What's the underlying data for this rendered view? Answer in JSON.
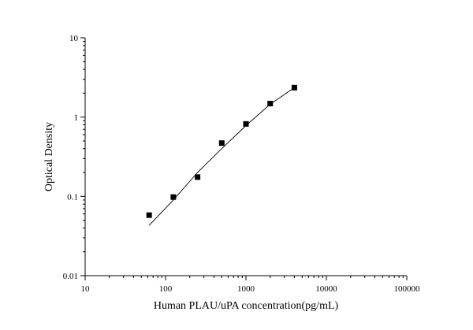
{
  "chart_data": {
    "type": "scatter",
    "title": "",
    "xlabel": "Human PLAU/uPA concentration(pg/mL)",
    "ylabel": "Optical Density",
    "x_scale": "log",
    "y_scale": "log",
    "xlim": [
      10,
      100000
    ],
    "ylim": [
      0.01,
      10
    ],
    "x_ticks": [
      10,
      100,
      1000,
      10000,
      100000
    ],
    "x_tick_labels": [
      "10",
      "100",
      "1000",
      "10000",
      "100000"
    ],
    "y_ticks": [
      0.01,
      0.1,
      1,
      10
    ],
    "y_tick_labels": [
      "0.01",
      "0.1",
      "1",
      "10"
    ],
    "grid": false,
    "legend": "none",
    "series": [
      {
        "marker": "square",
        "color": "#000000",
        "points": [
          {
            "x": 62.5,
            "y": 0.058
          },
          {
            "x": 125,
            "y": 0.098
          },
          {
            "x": 250,
            "y": 0.175
          },
          {
            "x": 500,
            "y": 0.47
          },
          {
            "x": 1000,
            "y": 0.82
          },
          {
            "x": 2000,
            "y": 1.48
          },
          {
            "x": 4000,
            "y": 2.35
          }
        ]
      }
    ],
    "fit_curve": {
      "color": "#000000",
      "points": [
        {
          "x": 62.5,
          "y": 0.043
        },
        {
          "x": 125,
          "y": 0.09
        },
        {
          "x": 250,
          "y": 0.2
        },
        {
          "x": 500,
          "y": 0.4
        },
        {
          "x": 1000,
          "y": 0.78
        },
        {
          "x": 2000,
          "y": 1.45
        },
        {
          "x": 4000,
          "y": 2.35
        }
      ]
    }
  }
}
